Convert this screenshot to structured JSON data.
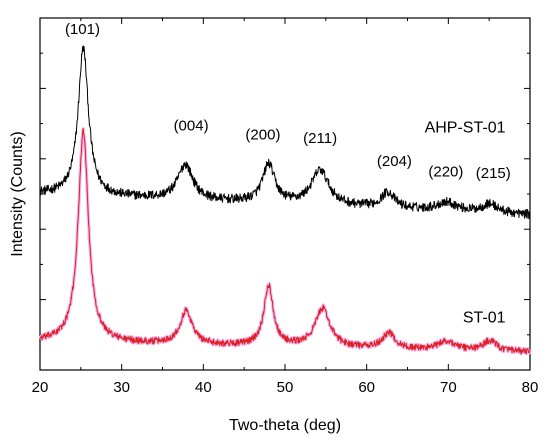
{
  "chart_data": {
    "type": "line",
    "title": "",
    "xlabel": "Two-theta (deg)",
    "ylabel": "Intensity (Counts)",
    "xlim": [
      20,
      80
    ],
    "ylim": [
      0,
      100
    ],
    "xticks": [
      20,
      30,
      40,
      50,
      60,
      70,
      80
    ],
    "y_tick_labels_shown": false,
    "grid": false,
    "legend": "none",
    "series": [
      {
        "name": "AHP-ST-01",
        "color": "#000000",
        "baseline": 50,
        "slope": -0.1,
        "noise": 1.3,
        "peaks": [
          {
            "x": 25.3,
            "height": 42,
            "width": 0.75
          },
          {
            "x": 37.8,
            "height": 10,
            "width": 1.1
          },
          {
            "x": 48.0,
            "height": 11,
            "width": 0.9
          },
          {
            "x": 54.3,
            "height": 10,
            "width": 1.3
          },
          {
            "x": 62.6,
            "height": 4.5,
            "width": 1.0
          },
          {
            "x": 69.8,
            "height": 2.5,
            "width": 1.5
          },
          {
            "x": 75.1,
            "height": 2.5,
            "width": 1.2
          }
        ]
      },
      {
        "name": "ST-01",
        "color": "#e02020",
        "halo_color": "#f0b8f0",
        "baseline": 8,
        "slope": -0.05,
        "noise": 0.9,
        "peaks": [
          {
            "x": 25.3,
            "height": 60,
            "width": 0.75
          },
          {
            "x": 37.9,
            "height": 9.5,
            "width": 0.9
          },
          {
            "x": 48.0,
            "height": 17,
            "width": 0.7
          },
          {
            "x": 54.6,
            "height": 11,
            "width": 1.1
          },
          {
            "x": 62.7,
            "height": 4.5,
            "width": 0.9
          },
          {
            "x": 69.8,
            "height": 2.5,
            "width": 1.3
          },
          {
            "x": 75.1,
            "height": 3,
            "width": 1.0
          }
        ]
      }
    ],
    "annotations": [
      {
        "text": "(101)",
        "x": 25.2,
        "y": 95.5
      },
      {
        "text": "(004)",
        "x": 38.5,
        "y": 68.0
      },
      {
        "text": "(200)",
        "x": 47.3,
        "y": 65.5
      },
      {
        "text": "(211)",
        "x": 54.3,
        "y": 64.5
      },
      {
        "text": "(204)",
        "x": 63.4,
        "y": 58.0
      },
      {
        "text": "(220)",
        "x": 69.7,
        "y": 55.0
      },
      {
        "text": "(215)",
        "x": 75.5,
        "y": 54.5
      }
    ]
  }
}
